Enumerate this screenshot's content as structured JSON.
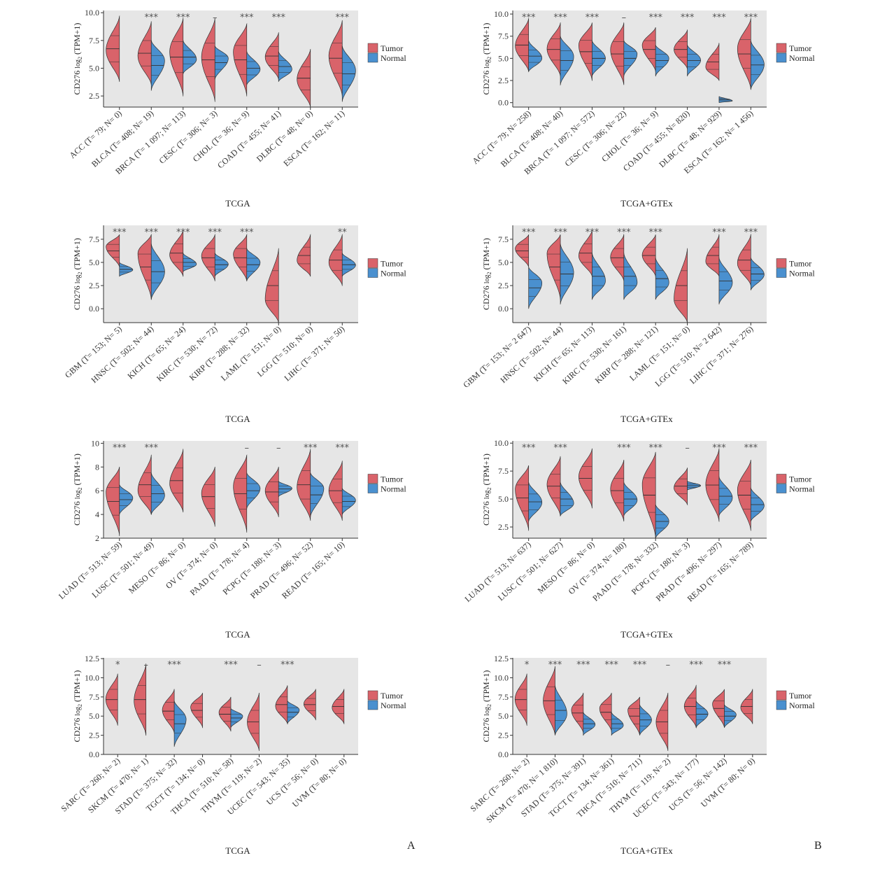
{
  "figure": {
    "panel_letters": [
      "A",
      "B"
    ],
    "ylabel_main": "CD276",
    "ylabel_log": "log",
    "ylabel_sub": "2",
    "ylabel_tpm": "(TPM+1)"
  },
  "colors": {
    "tumor": "#d9636a",
    "normal": "#4a90cf",
    "panel_bg": "#e6e6e6"
  },
  "chart_data": [
    {
      "type": "violin",
      "xlabel": "TCGA",
      "ylim": [
        1.5,
        10.2
      ],
      "yticks": [
        2.5,
        5.0,
        7.5,
        10.0
      ],
      "tick_format": 1,
      "legend": [
        "Tumor",
        "Normal"
      ],
      "categories": [
        "ACC (T= 79; N= 0)",
        "BLCA (T= 408; N= 19)",
        "BRCA (T= 1 097; N= 113)",
        "CESC (T= 306; N= 3)",
        "CHOL (T= 36; N= 9)",
        "COAD (T= 455; N= 41)",
        "DLBC (T= 48; N= 0)",
        "ESCA (T= 162; N= 11)"
      ],
      "significance": [
        "",
        "***",
        "***",
        "–",
        "***",
        "***",
        "",
        "***"
      ],
      "tumor": [
        [
          3.8,
          9.7,
          6.6
        ],
        [
          3.5,
          9.2,
          6.1
        ],
        [
          2.5,
          9.5,
          6.5
        ],
        [
          2.0,
          9.5,
          6.0
        ],
        [
          2.5,
          9.0,
          6.5
        ],
        [
          4.0,
          8.2,
          6.0
        ],
        [
          1.5,
          6.7,
          4.0
        ],
        [
          2.5,
          9.3,
          6.1
        ]
      ],
      "normal": [
        null,
        [
          3.0,
          7.5,
          5.7
        ],
        [
          4.5,
          7.5,
          5.8
        ],
        [
          4.0,
          7.0,
          5.9
        ],
        [
          3.5,
          6.5,
          4.9
        ],
        [
          3.8,
          6.5,
          4.9
        ],
        null,
        [
          2.0,
          7.0,
          4.8
        ]
      ]
    },
    {
      "type": "violin",
      "xlabel": "TCGA+GTEx",
      "ylim": [
        -0.5,
        10.4
      ],
      "yticks": [
        0.0,
        2.5,
        5.0,
        7.5,
        10.0
      ],
      "tick_format": 1,
      "legend": [
        "Tumor",
        "Normal"
      ],
      "categories": [
        "ACC (T= 79; N= 258)",
        "BLCA (T= 408; N= 40)",
        "BRCA (T= 1 097; N= 572)",
        "CESC (T= 306; N= 22)",
        "CHOL (T= 36; N= 9)",
        "COAD (T= 455; N= 820)",
        "DLBC (T= 48; N= 929)",
        "ESCA (T= 162; N= 1 456)"
      ],
      "significance": [
        "***",
        "***",
        "***",
        "–",
        "***",
        "***",
        "***",
        "***"
      ],
      "tumor": [
        [
          3.5,
          9.5,
          6.4
        ],
        [
          3.0,
          9.0,
          6.1
        ],
        [
          2.5,
          9.0,
          6.5
        ],
        [
          2.0,
          9.0,
          6.0
        ],
        [
          3.5,
          8.5,
          6.5
        ],
        [
          3.8,
          8.2,
          6.0
        ],
        [
          2.5,
          6.7,
          4.0
        ],
        [
          1.5,
          9.5,
          6.1
        ]
      ],
      "normal": [
        [
          3.5,
          7.0,
          5.0
        ],
        [
          2.0,
          7.5,
          5.2
        ],
        [
          3.0,
          7.0,
          5.0
        ],
        [
          3.0,
          7.0,
          5.5
        ],
        [
          3.0,
          6.5,
          5.0
        ],
        [
          3.0,
          6.5,
          4.8
        ],
        [
          0.0,
          0.7,
          0.2
        ],
        [
          1.5,
          7.0,
          4.3
        ]
      ]
    },
    {
      "type": "violin",
      "xlabel": "TCGA",
      "ylim": [
        -1.5,
        9.0
      ],
      "yticks": [
        0.0,
        2.5,
        5.0,
        7.5
      ],
      "tick_format": 1,
      "legend": [
        "Tumor",
        "Normal"
      ],
      "categories": [
        "GBM (T= 153; N= 5)",
        "HNSC (T= 502; N= 44)",
        "KICH (T= 65; N= 24)",
        "KIRC (T= 530; N= 72)",
        "KIRP (T= 288; N= 32)",
        "LAML (T= 151; N= 0)",
        "LGG (T= 510; N= 0)",
        "LIHC (T= 371; N= 50)"
      ],
      "significance": [
        "***",
        "***",
        "***",
        "***",
        "***",
        "",
        "",
        "**"
      ],
      "tumor": [
        [
          4.5,
          8.0,
          6.7
        ],
        [
          1.0,
          8.0,
          6.0
        ],
        [
          3.5,
          8.5,
          5.8
        ],
        [
          3.0,
          8.0,
          5.7
        ],
        [
          3.0,
          8.0,
          5.9
        ],
        [
          -1.5,
          6.5,
          1.0
        ],
        [
          3.5,
          8.0,
          5.2
        ],
        [
          2.5,
          8.0,
          5.0
        ]
      ],
      "normal": [
        [
          3.5,
          5.0,
          4.2
        ],
        [
          1.0,
          7.0,
          4.0
        ],
        [
          4.0,
          6.0,
          4.8
        ],
        [
          3.5,
          6.0,
          4.8
        ],
        [
          3.0,
          6.5,
          5.0
        ],
        null,
        null,
        [
          3.5,
          6.0,
          4.7
        ]
      ]
    },
    {
      "type": "violin",
      "xlabel": "TCGA+GTEx",
      "ylim": [
        -1.5,
        9.0
      ],
      "yticks": [
        0.0,
        2.5,
        5.0,
        7.5
      ],
      "tick_format": 1,
      "legend": [
        "Tumor",
        "Normal"
      ],
      "categories": [
        "GBM (T= 153; N= 2 647)",
        "HNSC (T= 502; N= 44)",
        "KICH (T= 65; N= 113)",
        "KIRC (T= 530; N= 161)",
        "KIRP (T= 288; N= 121)",
        "LAML (T= 151; N= 0)",
        "LGG (T= 510; N= 2 642)",
        "LIHC (T= 371; N= 276)"
      ],
      "significance": [
        "***",
        "***",
        "***",
        "***",
        "***",
        "",
        "***",
        "***"
      ],
      "tumor": [
        [
          4.5,
          8.0,
          6.5
        ],
        [
          1.0,
          8.0,
          6.0
        ],
        [
          3.5,
          8.5,
          5.7
        ],
        [
          3.0,
          8.0,
          5.6
        ],
        [
          3.5,
          8.0,
          5.8
        ],
        [
          -1.5,
          6.5,
          1.0
        ],
        [
          3.5,
          8.0,
          5.1
        ],
        [
          2.5,
          8.0,
          4.9
        ]
      ],
      "normal": [
        [
          0.0,
          4.5,
          2.8
        ],
        [
          0.5,
          7.0,
          3.9
        ],
        [
          1.0,
          6.0,
          3.0
        ],
        [
          1.0,
          6.0,
          2.8
        ],
        [
          1.0,
          5.5,
          2.8
        ],
        null,
        [
          0.5,
          5.5,
          2.8
        ],
        [
          2.0,
          5.5,
          3.7
        ]
      ]
    },
    {
      "type": "violin",
      "xlabel": "TCGA",
      "ylim": [
        2.0,
        10.2
      ],
      "yticks": [
        2,
        4,
        6,
        8,
        10
      ],
      "tick_format": 0,
      "legend": [
        "Tumor",
        "Normal"
      ],
      "categories": [
        "LUAD (T= 513; N= 59)",
        "LUSC (T= 501; N= 49)",
        "MESO (T= 86; N= 0)",
        "OV (T= 374; N= 0)",
        "PAAD (T= 178; N= 4)",
        "PCPG (T= 180; N= 3)",
        "PRAD (T= 496; N= 52)",
        "READ (T= 165; N= 10)"
      ],
      "significance": [
        "***",
        "***",
        "",
        "",
        "–",
        "–",
        "***",
        "***"
      ],
      "tumor": [
        [
          2.2,
          8.0,
          5.9
        ],
        [
          4.0,
          9.0,
          6.0
        ],
        [
          4.2,
          9.5,
          6.6
        ],
        [
          3.0,
          8.0,
          5.8
        ],
        [
          2.5,
          9.0,
          6.4
        ],
        [
          3.8,
          8.0,
          6.0
        ],
        [
          3.5,
          9.5,
          6.3
        ],
        [
          3.5,
          8.5,
          6.0
        ]
      ],
      "normal": [
        [
          4.0,
          6.5,
          5.4
        ],
        [
          4.0,
          7.5,
          5.6
        ],
        null,
        null,
        [
          4.5,
          7.5,
          6.2
        ],
        [
          5.5,
          6.8,
          6.2
        ],
        [
          3.8,
          7.5,
          6.2
        ],
        [
          4.0,
          6.2,
          5.2
        ]
      ]
    },
    {
      "type": "violin",
      "xlabel": "TCGA+GTEx",
      "ylim": [
        1.5,
        10.2
      ],
      "yticks": [
        2.5,
        5.0,
        7.5,
        10.0
      ],
      "tick_format": 1,
      "legend": [
        "Tumor",
        "Normal"
      ],
      "categories": [
        "LUAD (T= 513; N= 637)",
        "LUSC (T= 501; N= 627)",
        "MESO (T= 86; N= 0)",
        "OV (T= 374; N= 180)",
        "PAAD (T= 178; N= 332)",
        "PCPG (T= 180; N= 3)",
        "PRAD (T= 496; N= 297)",
        "READ (T= 165; N= 789)"
      ],
      "significance": [
        "***",
        "***",
        "",
        "***",
        "***",
        "–",
        "***",
        "***"
      ],
      "tumor": [
        [
          2.2,
          8.0,
          5.9
        ],
        [
          3.5,
          8.8,
          6.3
        ],
        [
          4.2,
          9.5,
          7.0
        ],
        [
          3.0,
          8.5,
          5.9
        ],
        [
          1.5,
          9.2,
          6.3
        ],
        [
          4.5,
          7.8,
          6.0
        ],
        [
          3.0,
          9.5,
          6.3
        ],
        [
          2.2,
          8.5,
          5.8
        ]
      ],
      "normal": [
        [
          3.0,
          6.5,
          4.7
        ],
        [
          3.5,
          6.5,
          4.6
        ],
        null,
        [
          3.5,
          6.5,
          4.9
        ],
        [
          1.5,
          4.5,
          3.0
        ],
        [
          5.8,
          6.6,
          6.2
        ],
        [
          3.5,
          7.0,
          5.1
        ],
        [
          3.0,
          6.0,
          4.4
        ]
      ]
    },
    {
      "type": "violin",
      "xlabel": "TCGA",
      "ylim": [
        0.0,
        12.6
      ],
      "yticks": [
        0.0,
        2.5,
        5.0,
        7.5,
        10.0,
        12.5
      ],
      "tick_format": 1,
      "legend": [
        "Tumor",
        "Normal"
      ],
      "categories": [
        "SARC (T= 260; N= 2)",
        "SKCM (T= 470; N= 1)",
        "STAD (T= 375; N= 32)",
        "TGCT (T= 134; N= 0)",
        "THCA (T= 510; N= 58)",
        "THYM (T= 119; N= 2)",
        "UCEC (T= 543; N= 35)",
        "UCS (T= 56; N= 0)",
        "UVM (T= 80; N= 0)"
      ],
      "significance": [
        "*",
        "–",
        "***",
        "",
        "***",
        "–",
        "***",
        "",
        ""
      ],
      "tumor": [
        [
          3.8,
          10.5,
          7.2
        ],
        [
          2.5,
          11.8,
          7.0
        ],
        [
          2.8,
          8.5,
          5.8
        ],
        [
          3.5,
          8.0,
          6.2
        ],
        [
          3.0,
          7.5,
          5.5
        ],
        [
          0.5,
          8.0,
          4.2
        ],
        [
          4.0,
          9.0,
          6.3
        ],
        [
          4.5,
          8.5,
          6.6
        ],
        [
          4.0,
          8.5,
          6.1
        ]
      ],
      "normal": [
        null,
        null,
        [
          1.0,
          7.0,
          4.6
        ],
        null,
        [
          3.5,
          6.0,
          5.0
        ],
        null,
        [
          4.0,
          7.0,
          5.8
        ],
        null,
        null
      ]
    },
    {
      "type": "violin",
      "xlabel": "TCGA+GTEx",
      "ylim": [
        0.0,
        12.6
      ],
      "yticks": [
        0.0,
        2.5,
        5.0,
        7.5,
        10.0,
        12.5
      ],
      "tick_format": 1,
      "legend": [
        "Tumor",
        "Normal"
      ],
      "categories": [
        "SARC (T= 260; N= 2)",
        "SKCM (T= 470; N= 1 810)",
        "STAD (T= 375; N= 391)",
        "TGCT (T= 134; N= 361)",
        "THCA (T= 510; N= 711)",
        "THYM (T= 119; N= 2)",
        "UCEC (T= 543; N= 177)",
        "UCS (T= 56; N= 142)",
        "UVM (T= 80; N= 0)"
      ],
      "significance": [
        "*",
        "***",
        "***",
        "***",
        "***",
        "–",
        "***",
        "***",
        ""
      ],
      "tumor": [
        [
          3.8,
          10.5,
          7.2
        ],
        [
          2.5,
          11.5,
          7.0
        ],
        [
          2.8,
          8.0,
          5.8
        ],
        [
          3.0,
          8.0,
          6.0
        ],
        [
          2.5,
          7.5,
          5.8
        ],
        [
          0.5,
          8.0,
          4.2
        ],
        [
          3.5,
          9.0,
          6.3
        ],
        [
          3.5,
          8.5,
          6.6
        ],
        [
          4.0,
          8.5,
          6.1
        ]
      ],
      "normal": [
        null,
        [
          2.5,
          9.0,
          5.3
        ],
        [
          2.5,
          5.5,
          3.9
        ],
        [
          2.5,
          5.5,
          3.8
        ],
        [
          2.5,
          6.5,
          4.5
        ],
        null,
        [
          3.5,
          7.0,
          5.3
        ],
        [
          3.5,
          6.5,
          5.2
        ],
        null
      ]
    }
  ]
}
